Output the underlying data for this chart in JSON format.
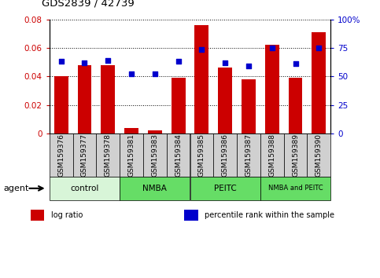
{
  "title": "GDS2839 / 42739",
  "samples": [
    "GSM159376",
    "GSM159377",
    "GSM159378",
    "GSM159381",
    "GSM159383",
    "GSM159384",
    "GSM159385",
    "GSM159386",
    "GSM159387",
    "GSM159388",
    "GSM159389",
    "GSM159390"
  ],
  "log_ratio": [
    0.04,
    0.048,
    0.048,
    0.004,
    0.002,
    0.039,
    0.076,
    0.046,
    0.038,
    0.062,
    0.039,
    0.071
  ],
  "percentile_rank": [
    63,
    62,
    64,
    52,
    52,
    63,
    74,
    62,
    59,
    75,
    61,
    75
  ],
  "groups": [
    {
      "label": "control",
      "start": 0,
      "end": 3,
      "color": "#d8f5d8"
    },
    {
      "label": "NMBA",
      "start": 3,
      "end": 6,
      "color": "#66dd66"
    },
    {
      "label": "PEITC",
      "start": 6,
      "end": 9,
      "color": "#66dd66"
    },
    {
      "label": "NMBA and PEITC",
      "start": 9,
      "end": 12,
      "color": "#66dd66"
    }
  ],
  "bar_color": "#cc0000",
  "dot_color": "#0000cc",
  "ylim_left": [
    0,
    0.08
  ],
  "ylim_right": [
    0,
    100
  ],
  "yticks_left": [
    0,
    0.02,
    0.04,
    0.06,
    0.08
  ],
  "yticks_right": [
    0,
    25,
    50,
    75,
    100
  ],
  "ytick_labels_left": [
    "0",
    "0.02",
    "0.04",
    "0.06",
    "0.08"
  ],
  "ytick_labels_right": [
    "0",
    "25",
    "50",
    "75",
    "100%"
  ],
  "left_tick_color": "#cc0000",
  "right_tick_color": "#0000cc",
  "bar_width": 0.6,
  "agent_label": "agent",
  "sample_box_color": "#d0d0d0",
  "legend_items": [
    {
      "label": "log ratio",
      "color": "#cc0000"
    },
    {
      "label": "percentile rank within the sample",
      "color": "#0000cc"
    }
  ]
}
